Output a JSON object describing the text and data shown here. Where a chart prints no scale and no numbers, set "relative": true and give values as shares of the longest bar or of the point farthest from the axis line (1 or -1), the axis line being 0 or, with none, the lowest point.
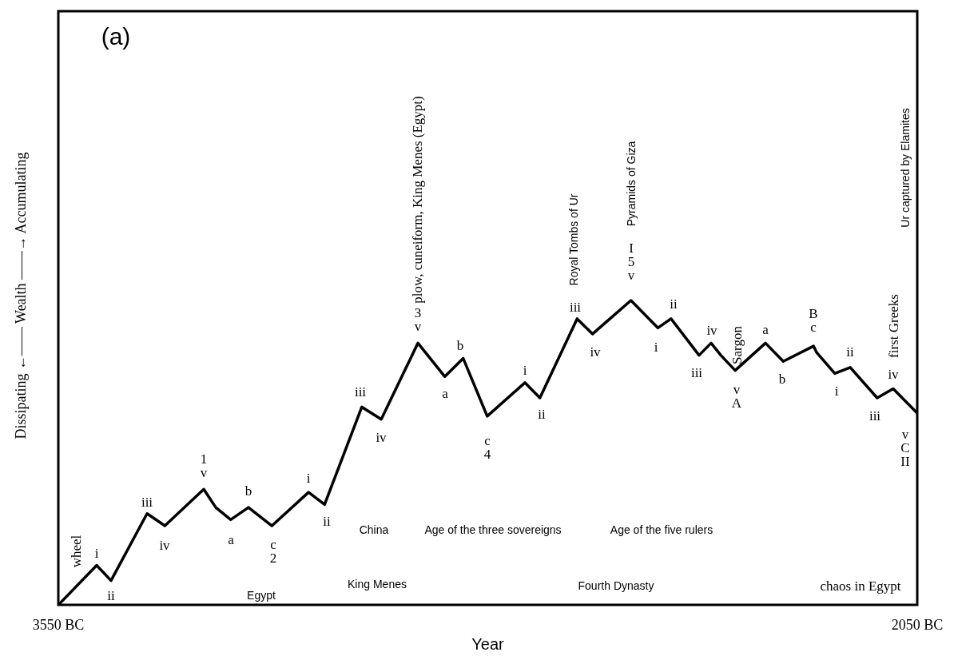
{
  "chart_data": {
    "type": "line",
    "xlabel": "Year",
    "ylabel": "Dissipating ←—— Wealth ——→ Accumulating",
    "relative": true,
    "color": "#000000",
    "xlim": [
      -3550,
      -2050
    ],
    "xticks": [
      {
        "value": -3550,
        "label": "3550 BC"
      },
      {
        "value": -2050,
        "label": "2050 BC"
      }
    ],
    "x": [
      -3550,
      -3483,
      -3458,
      -3395,
      -3364,
      -3296,
      -3275,
      -3249,
      -3218,
      -3177,
      -3113,
      -3085,
      -3020,
      -2986,
      -2922,
      -2875,
      -2843,
      -2801,
      -2735,
      -2709,
      -2644,
      -2617,
      -2550,
      -2503,
      -2480,
      -2431,
      -2410,
      -2393,
      -2368,
      -2315,
      -2284,
      -2231,
      -2226,
      -2194,
      -2167,
      -2120,
      -2092,
      -2050
    ],
    "values": [
      0,
      0.13,
      0.08,
      0.3,
      0.26,
      0.38,
      0.32,
      0.28,
      0.32,
      0.26,
      0.37,
      0.33,
      0.65,
      0.61,
      0.86,
      0.75,
      0.81,
      0.62,
      0.73,
      0.68,
      0.94,
      0.89,
      1,
      0.91,
      0.94,
      0.82,
      0.86,
      0.82,
      0.77,
      0.86,
      0.8,
      0.85,
      0.83,
      0.76,
      0.78,
      0.68,
      0.71,
      0.63
    ],
    "annotations": [
      "(a)",
      "wheel",
      "i",
      "ii",
      "iii",
      "iv",
      "1\nv",
      "a",
      "b",
      "c\n2",
      "i",
      "ii",
      "iii",
      "iv",
      "3\nv",
      "plow, cuneiform, King Menes (Egypt)",
      "a",
      "b",
      "c\n4",
      "i",
      "ii",
      "iii",
      "Royal Tombs of Ur",
      "iv",
      "I\n5\nv",
      "Pyramids of Giza",
      "i",
      "ii",
      "iii",
      "iv",
      "Sargon",
      "v\nA",
      "a",
      "b",
      "B\nc",
      "i",
      "ii",
      "iii",
      "iv",
      "first Greeks",
      "Ur captured by Elamites",
      "v\nC\nII",
      "China",
      "Age of the three sovereigns",
      "Age of the five rulers",
      "Egypt",
      "King Menes",
      "Fourth Dynasty",
      "chaos in Egypt"
    ]
  }
}
